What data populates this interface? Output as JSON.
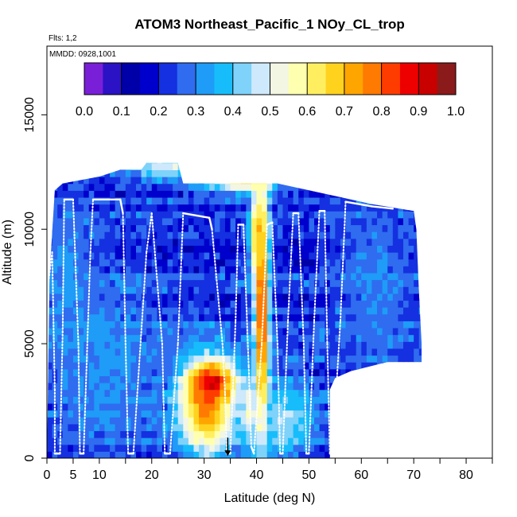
{
  "chart_data": {
    "type": "heatmap",
    "title": "ATOM3 Northeast_Pacific_1 NOy_CL_trop",
    "flights_note": "Flts: 1,2",
    "date_note": "MMDD: 0928,1001",
    "xlabel": "Latitude (deg N)",
    "ylabel": "Altitude (m)",
    "xlim": [
      0,
      85
    ],
    "ylim": [
      0,
      18000
    ],
    "x_ticks": [
      0,
      5,
      10,
      20,
      30,
      40,
      50,
      60,
      70,
      80
    ],
    "x_minor_ticks": [
      15,
      25,
      35,
      45,
      55,
      65,
      75,
      85
    ],
    "y_ticks": [
      0,
      5000,
      10000,
      15000
    ],
    "colorbar": {
      "range": [
        0.0,
        1.0
      ],
      "ticks": [
        "0.0",
        "0.1",
        "0.2",
        "0.3",
        "0.4",
        "0.5",
        "0.6",
        "0.7",
        "0.8",
        "0.9",
        "1.0"
      ],
      "colors": [
        "#7a1fd8",
        "#2b12c4",
        "#0000a8",
        "#0000cc",
        "#1430e0",
        "#2f6cf0",
        "#1e9cf7",
        "#17bdfb",
        "#7fd2fa",
        "#cde9fb",
        "#f3f6e3",
        "#ffffb0",
        "#ffef60",
        "#ffd21e",
        "#ffa500",
        "#ff7a00",
        "#ff3c00",
        "#ee0000",
        "#c80000",
        "#8b1a1a"
      ]
    },
    "ceiling": [
      {
        "lat": 0.5,
        "alt": 8000
      },
      {
        "lat": 1.5,
        "alt": 11700
      },
      {
        "lat": 3,
        "alt": 12000
      },
      {
        "lat": 10,
        "alt": 12300
      },
      {
        "lat": 14,
        "alt": 12600
      },
      {
        "lat": 18,
        "alt": 12600
      },
      {
        "lat": 19,
        "alt": 12900
      },
      {
        "lat": 25,
        "alt": 12900
      },
      {
        "lat": 26,
        "alt": 12000
      },
      {
        "lat": 44,
        "alt": 12000
      },
      {
        "lat": 50,
        "alt": 11700
      },
      {
        "lat": 56,
        "alt": 11400
      },
      {
        "lat": 62,
        "alt": 11100
      },
      {
        "lat": 70,
        "alt": 10800
      },
      {
        "lat": 70.5,
        "alt": 10000
      },
      {
        "lat": 71,
        "alt": 7200
      },
      {
        "lat": 71.5,
        "alt": 5000
      },
      {
        "lat": 71.5,
        "alt": 4200
      },
      {
        "lat": 65,
        "alt": 4200
      },
      {
        "lat": 58,
        "alt": 3800
      },
      {
        "lat": 55,
        "alt": 3500
      },
      {
        "lat": 54,
        "alt": 3000
      },
      {
        "lat": 54,
        "alt": 0
      }
    ],
    "hotspots": [
      {
        "lat": 30,
        "alt": 2000,
        "value": 0.75,
        "lat_sigma": 4,
        "alt_sigma": 1500
      },
      {
        "lat": 31,
        "alt": 3200,
        "value": 0.9,
        "lat_sigma": 3,
        "alt_sigma": 600
      },
      {
        "lat": 40.5,
        "alt": 6500,
        "value": 0.85,
        "lat_sigma": 1,
        "alt_sigma": 4500
      },
      {
        "lat": 39.5,
        "alt": 9500,
        "value": 0.7,
        "lat_sigma": 1,
        "alt_sigma": 1000
      },
      {
        "lat": 38,
        "alt": 2000,
        "value": 0.55,
        "lat_sigma": 1,
        "alt_sigma": 1000
      },
      {
        "lat": 22,
        "alt": 12600,
        "value": 0.5,
        "lat_sigma": 5,
        "alt_sigma": 400
      },
      {
        "lat": 37,
        "alt": 12000,
        "value": 0.65,
        "lat_sigma": 5,
        "alt_sigma": 400
      },
      {
        "lat": 45,
        "alt": 1500,
        "value": 0.45,
        "lat_sigma": 4,
        "alt_sigma": 1200
      },
      {
        "lat": 10,
        "alt": 4000,
        "value": 0.32,
        "lat_sigma": 8,
        "alt_sigma": 3000
      },
      {
        "lat": 62,
        "alt": 7500,
        "value": 0.3,
        "lat_sigma": 5,
        "alt_sigma": 2500
      },
      {
        "lat": 3,
        "alt": 8000,
        "value": 0.32,
        "lat_sigma": 3,
        "alt_sigma": 2000
      }
    ],
    "flight_track": [
      {
        "lat": 0.3,
        "alt": 7700
      },
      {
        "lat": 1,
        "alt": 9000
      },
      {
        "lat": 1.5,
        "alt": 3000
      },
      {
        "lat": 1.5,
        "alt": 200
      },
      {
        "lat": 2.5,
        "alt": 200
      },
      {
        "lat": 3,
        "alt": 5500
      },
      {
        "lat": 3.3,
        "alt": 11300
      },
      {
        "lat": 5,
        "alt": 11300
      },
      {
        "lat": 6,
        "alt": 5000
      },
      {
        "lat": 6.3,
        "alt": 200
      },
      {
        "lat": 7,
        "alt": 200
      },
      {
        "lat": 8.3,
        "alt": 9000
      },
      {
        "lat": 8.8,
        "alt": 11300
      },
      {
        "lat": 14,
        "alt": 11300
      },
      {
        "lat": 14.5,
        "alt": 10700
      },
      {
        "lat": 15,
        "alt": 5000
      },
      {
        "lat": 15.5,
        "alt": 200
      },
      {
        "lat": 16.5,
        "alt": 200
      },
      {
        "lat": 19,
        "alt": 9000
      },
      {
        "lat": 20,
        "alt": 10700
      },
      {
        "lat": 22,
        "alt": 5000
      },
      {
        "lat": 22.5,
        "alt": 200
      },
      {
        "lat": 23.5,
        "alt": 200
      },
      {
        "lat": 25,
        "alt": 5000
      },
      {
        "lat": 26,
        "alt": 10700
      },
      {
        "lat": 31,
        "alt": 10500
      },
      {
        "lat": 31.5,
        "alt": 10000
      },
      {
        "lat": 33.5,
        "alt": 5000
      },
      {
        "lat": 34,
        "alt": 2800
      },
      {
        "lat": 34.3,
        "alt": 200
      },
      {
        "lat": 35,
        "alt": 200
      },
      {
        "lat": 36,
        "alt": 6000
      },
      {
        "lat": 36.5,
        "alt": 10200
      },
      {
        "lat": 37.5,
        "alt": 10200
      },
      {
        "lat": 38.5,
        "alt": 4000
      },
      {
        "lat": 39,
        "alt": 500
      },
      {
        "lat": 39.5,
        "alt": 200
      },
      {
        "lat": 41,
        "alt": 5000
      },
      {
        "lat": 42,
        "alt": 10200
      },
      {
        "lat": 43,
        "alt": 10300
      },
      {
        "lat": 44,
        "alt": 5000
      },
      {
        "lat": 44.5,
        "alt": 200
      },
      {
        "lat": 45,
        "alt": 200
      },
      {
        "lat": 46,
        "alt": 6000
      },
      {
        "lat": 47,
        "alt": 10700
      },
      {
        "lat": 48,
        "alt": 10700
      },
      {
        "lat": 49,
        "alt": 5000
      },
      {
        "lat": 49.5,
        "alt": 200
      },
      {
        "lat": 50,
        "alt": 200
      },
      {
        "lat": 51,
        "alt": 6000
      },
      {
        "lat": 52,
        "alt": 10800
      },
      {
        "lat": 53,
        "alt": 10800
      },
      {
        "lat": 53.5,
        "alt": 5000
      },
      {
        "lat": 54,
        "alt": 200
      },
      {
        "lat": 54.5,
        "alt": 200
      },
      {
        "lat": 56,
        "alt": 6000
      },
      {
        "lat": 57,
        "alt": 11200
      },
      {
        "lat": 62,
        "alt": 11000
      },
      {
        "lat": 66,
        "alt": 10900
      }
    ],
    "marker": {
      "lat": 34.5,
      "alt": 200,
      "symbol": "down-arrow"
    }
  }
}
